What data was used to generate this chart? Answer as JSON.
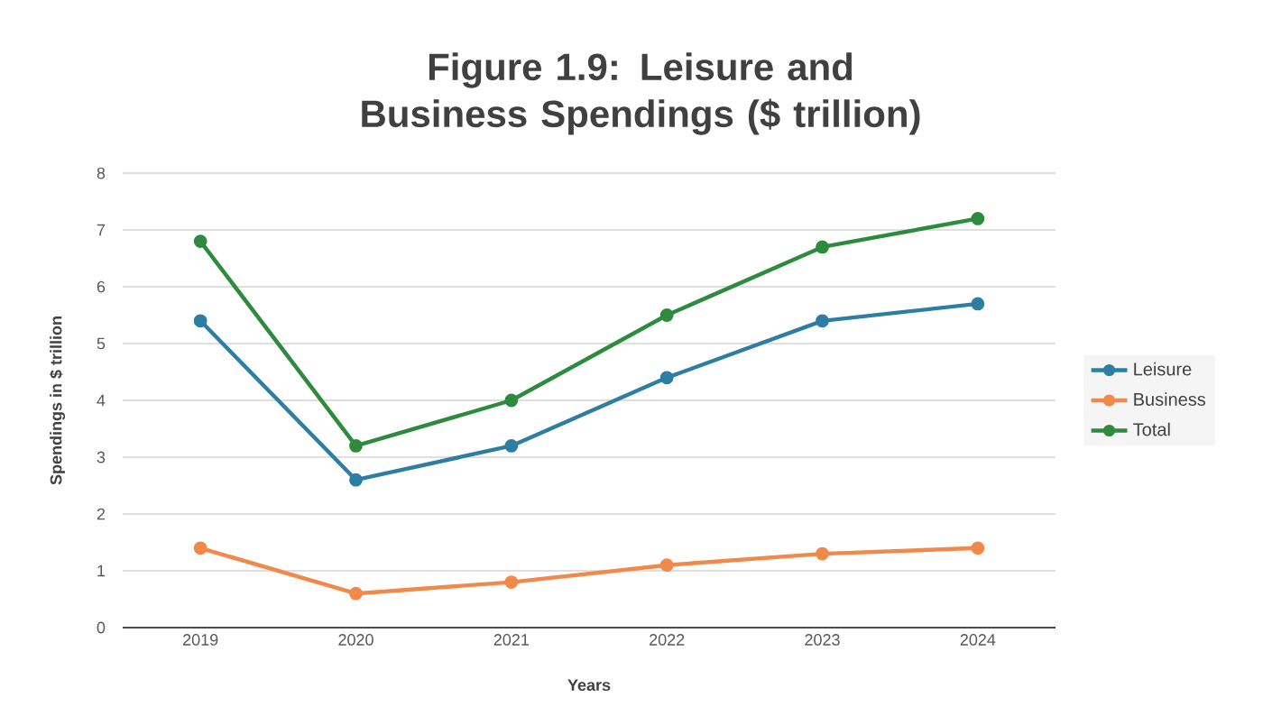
{
  "chart_data": {
    "type": "line",
    "title": "Figure 1.9: Leisure and Business Spendings ($ trillion)",
    "xlabel": "Years",
    "ylabel": "Spendings in $ trillion",
    "categories": [
      "2019",
      "2020",
      "2021",
      "2022",
      "2023",
      "2024"
    ],
    "series": [
      {
        "name": "Leisure",
        "color": "#2e7ea3",
        "values": [
          5.4,
          2.6,
          3.2,
          4.4,
          5.4,
          5.7
        ]
      },
      {
        "name": "Business",
        "color": "#f0894a",
        "values": [
          1.4,
          0.6,
          0.8,
          1.1,
          1.3,
          1.4
        ]
      },
      {
        "name": "Total",
        "color": "#2e8b3e",
        "values": [
          6.8,
          3.2,
          4.0,
          5.5,
          6.7,
          7.2
        ]
      }
    ],
    "ylim": [
      0,
      8
    ],
    "yticks": [
      0,
      1,
      2,
      3,
      4,
      5,
      6,
      7,
      8
    ],
    "grid": "y",
    "legend": "right",
    "marker": "circle",
    "line_style": "solid"
  }
}
